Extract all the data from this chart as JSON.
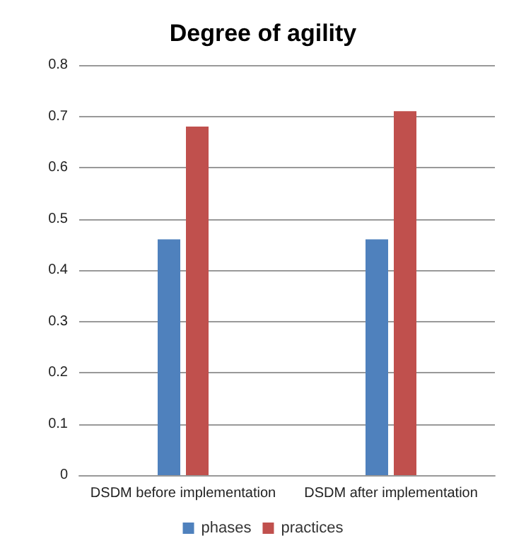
{
  "chart_data": {
    "type": "bar",
    "title": "Degree of agility",
    "categories": [
      "DSDM before implementation",
      "DSDM after implementation"
    ],
    "series": [
      {
        "name": "phases",
        "color": "#4f81bd",
        "values": [
          0.46,
          0.46
        ]
      },
      {
        "name": "practices",
        "color": "#c0504d",
        "values": [
          0.68,
          0.71
        ]
      }
    ],
    "ylim": [
      0,
      0.8
    ],
    "yticks": [
      0,
      0.1,
      0.2,
      0.3,
      0.4,
      0.5,
      0.6,
      0.7,
      0.8
    ],
    "grid": "y",
    "legend": "bottom"
  }
}
